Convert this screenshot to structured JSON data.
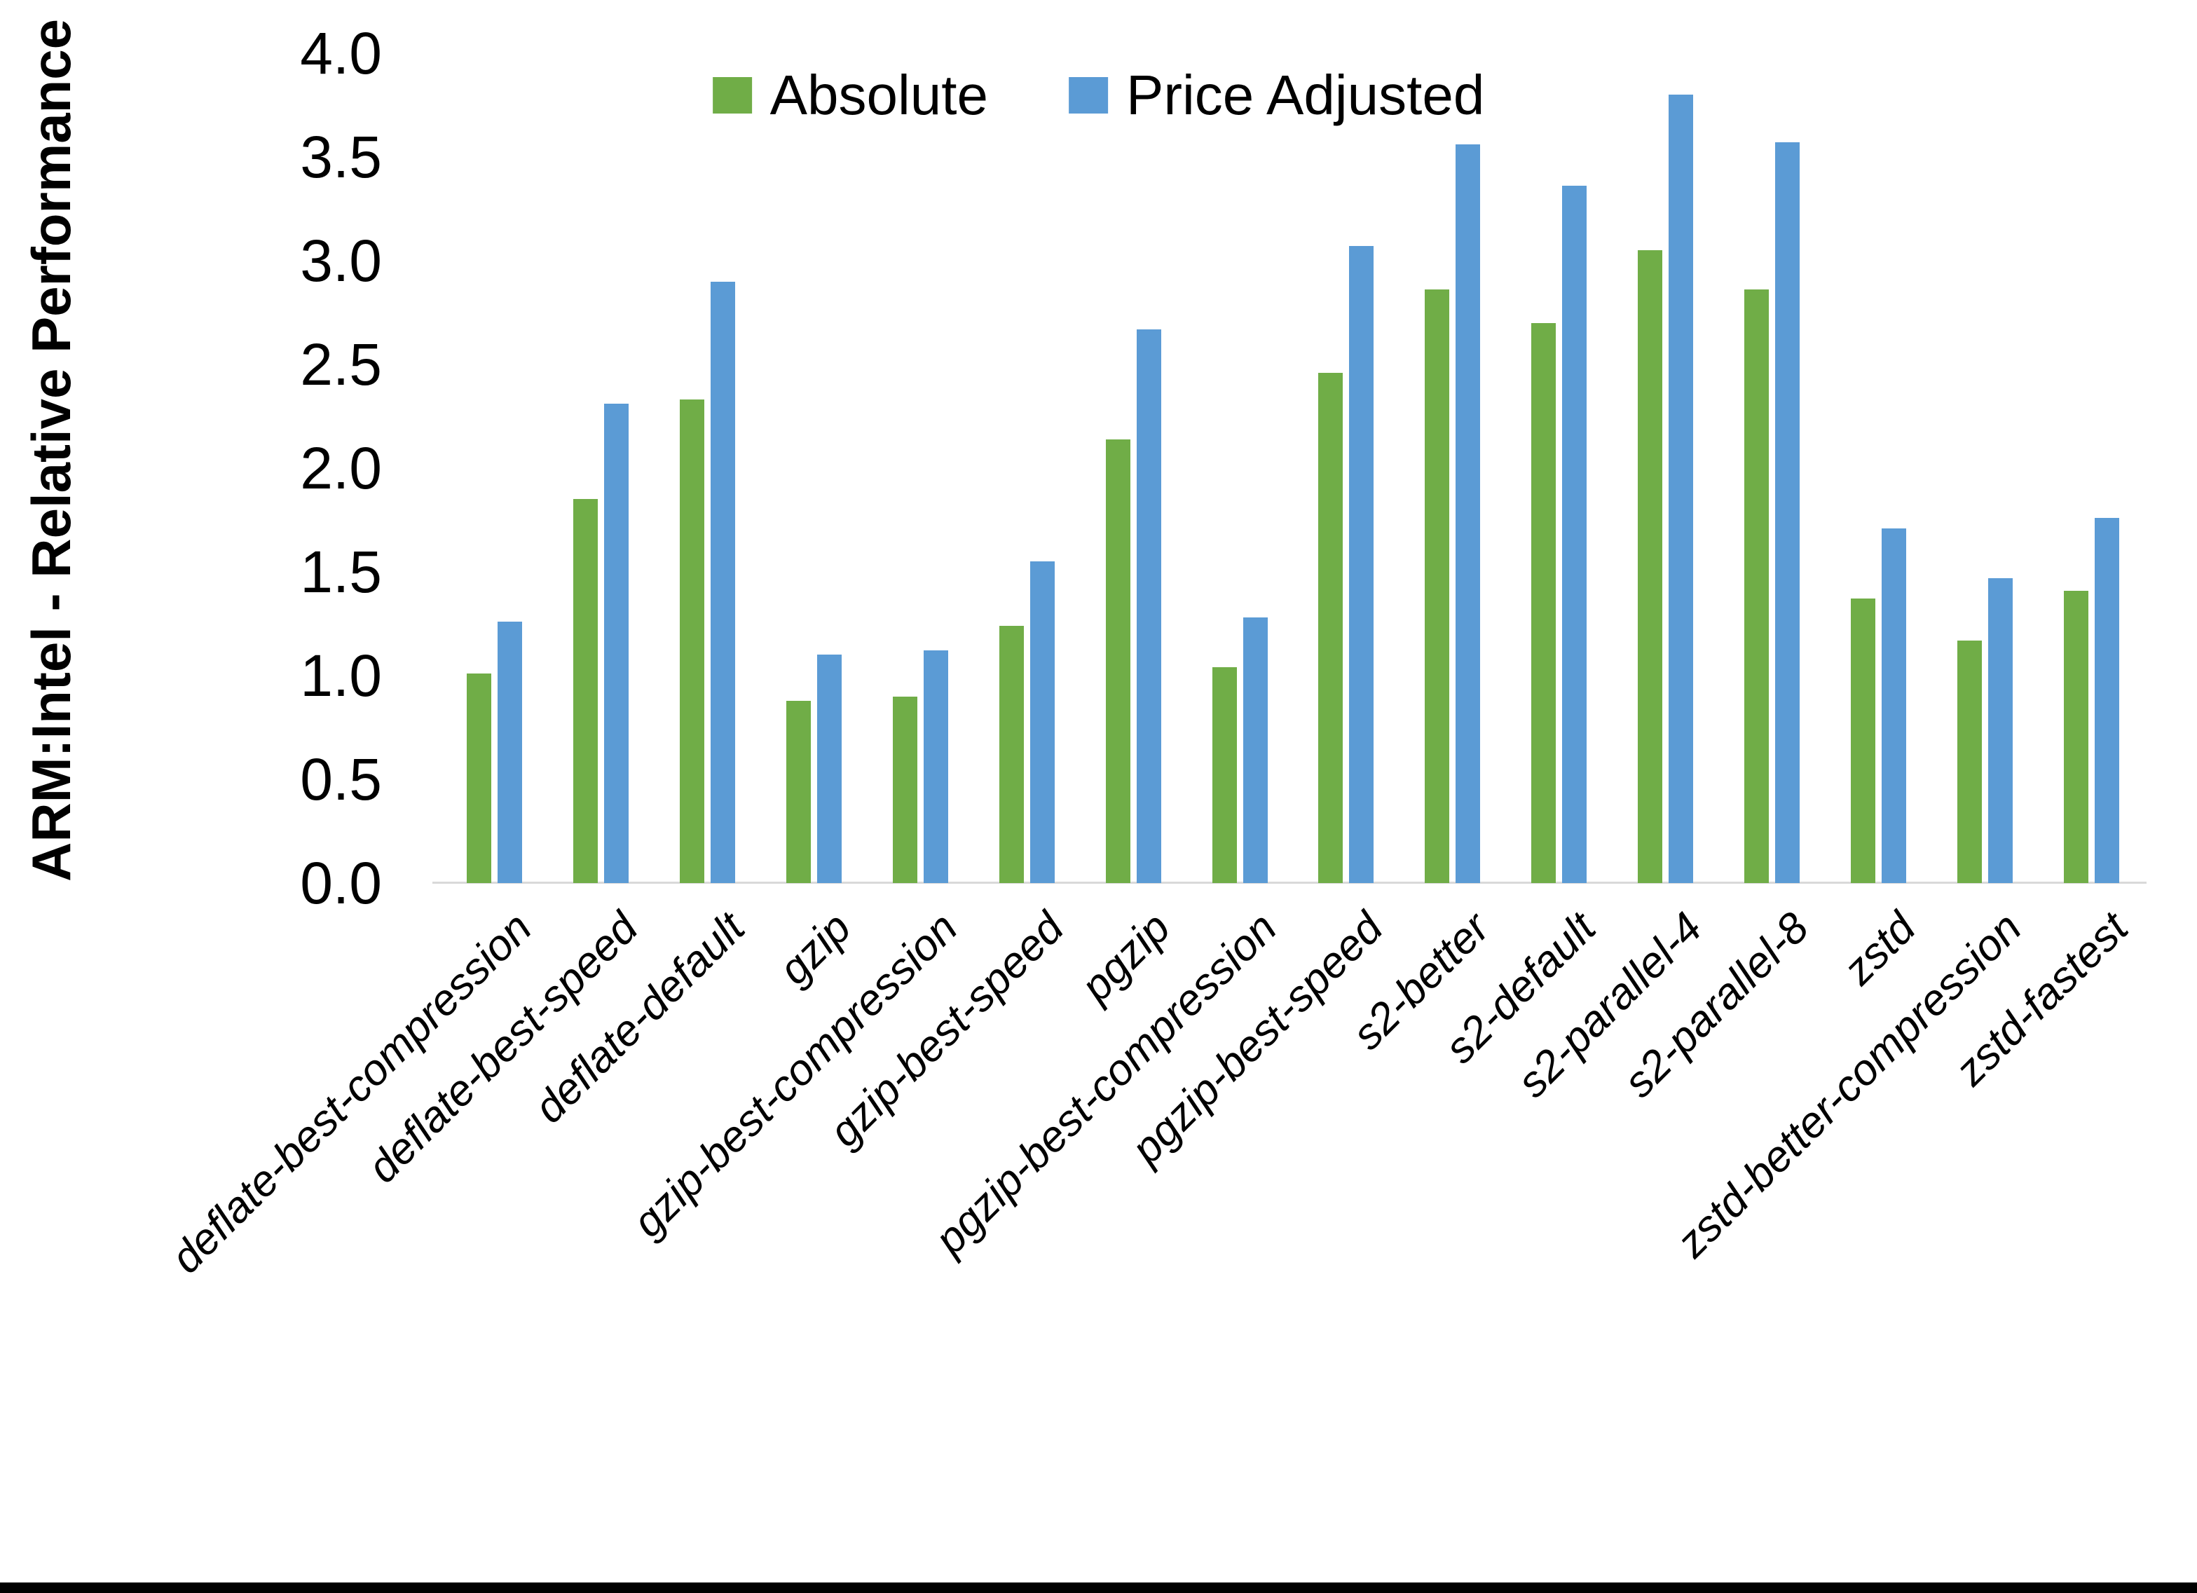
{
  "chart_data": {
    "type": "bar",
    "title": "",
    "ylabel": "ARM:Intel - Relative Performance",
    "xlabel": "",
    "ylim": [
      0.0,
      4.0
    ],
    "ytick_step": 0.5,
    "ytick_labels": [
      "0.0",
      "0.5",
      "1.0",
      "1.5",
      "2.0",
      "2.5",
      "3.0",
      "3.5",
      "4.0"
    ],
    "grid": false,
    "legend_position": "top-center",
    "categories": [
      "deflate-best-compression",
      "deflate-best-speed",
      "deflate-default",
      "gzip",
      "gzip-best-compression",
      "gzip-best-speed",
      "pgzip",
      "pgzip-best-compression",
      "pgzip-best-speed",
      "s2-better",
      "s2-default",
      "s2-parallel-4",
      "s2-parallel-8",
      "zstd",
      "zstd-better-compression",
      "zstd-fastest"
    ],
    "series": [
      {
        "name": "Absolute",
        "color": "#70AD47",
        "values": [
          1.01,
          1.85,
          2.33,
          0.88,
          0.9,
          1.24,
          2.14,
          1.04,
          2.46,
          2.86,
          2.7,
          3.05,
          2.86,
          1.37,
          1.17,
          1.41
        ]
      },
      {
        "name": "Price Adjusted",
        "color": "#5B9BD5",
        "values": [
          1.26,
          2.31,
          2.9,
          1.1,
          1.12,
          1.55,
          2.67,
          1.28,
          3.07,
          3.56,
          3.36,
          3.8,
          3.57,
          1.71,
          1.47,
          1.76
        ]
      }
    ]
  },
  "colors": {
    "axis_line": "#D9D9D9",
    "text": "#000000",
    "bottom_edge_bar": "#000000",
    "background": "#FFFFFF"
  }
}
